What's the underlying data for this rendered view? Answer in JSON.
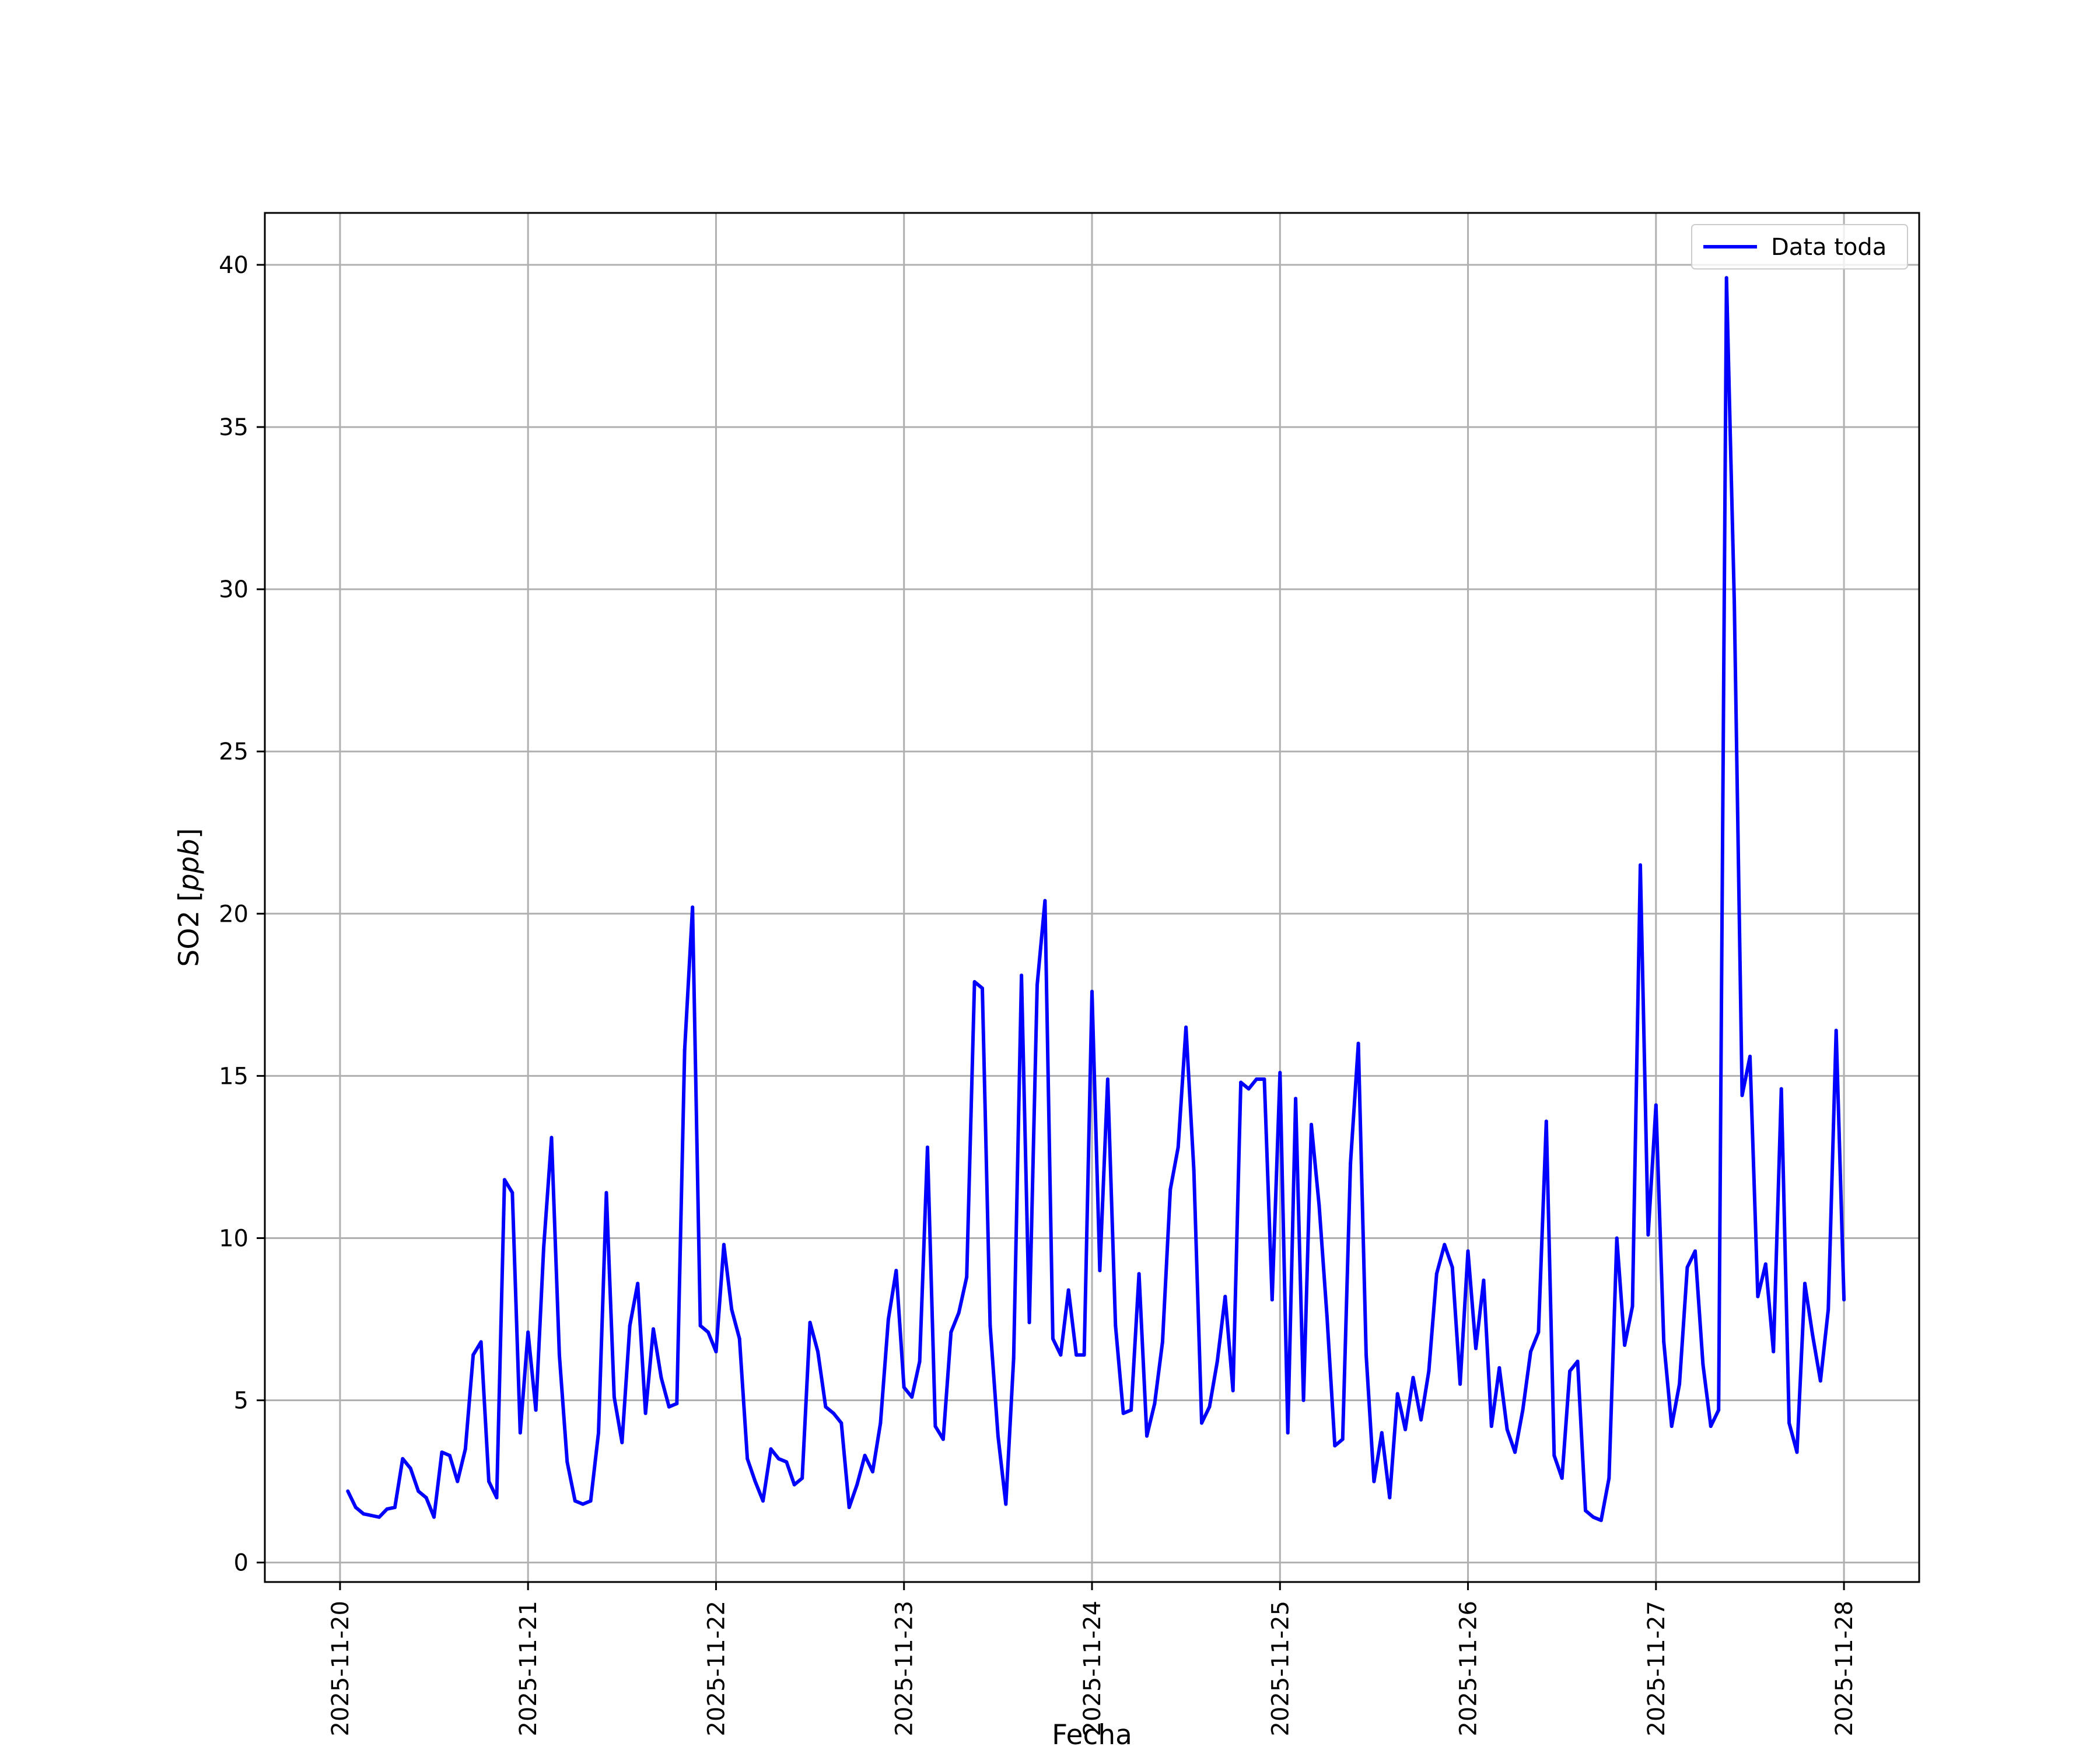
{
  "chart_data": {
    "type": "line",
    "xlabel": "Fecha",
    "ylabel": "SO2 [ppb]",
    "ylabel_parts": {
      "prefix": "SO2 [",
      "italic": "ppb",
      "suffix": "]"
    },
    "xlim": [
      "2025-11-19T14:24",
      "2025-11-28T09:36"
    ],
    "ylim": [
      -0.6,
      41.6
    ],
    "xticks": [
      "2025-11-20",
      "2025-11-21",
      "2025-11-22",
      "2025-11-23",
      "2025-11-24",
      "2025-11-25",
      "2025-11-26",
      "2025-11-27",
      "2025-11-28"
    ],
    "yticks": [
      "0",
      "5",
      "10",
      "15",
      "20",
      "25",
      "30",
      "35",
      "40"
    ],
    "grid": true,
    "legend": {
      "position": "top-right",
      "entries": [
        "Data toda"
      ]
    },
    "colors": {
      "line": "#0000ff",
      "grid": "#b0b0b0",
      "axes": "#000000"
    },
    "series": [
      {
        "name": "Data toda",
        "x_start": "2025-11-20T01:00",
        "x_step_hours": 1,
        "values": [
          2.2,
          1.7,
          1.5,
          1.45,
          1.4,
          1.65,
          1.7,
          3.2,
          2.9,
          2.2,
          2.0,
          1.4,
          3.4,
          3.3,
          2.5,
          3.5,
          6.4,
          6.8,
          2.5,
          2.0,
          11.8,
          11.4,
          4.0,
          7.1,
          4.7,
          9.7,
          13.1,
          6.4,
          3.1,
          1.9,
          1.8,
          1.9,
          4.0,
          11.4,
          5.1,
          3.7,
          7.3,
          8.6,
          4.6,
          7.2,
          5.7,
          4.8,
          4.9,
          15.8,
          20.2,
          7.3,
          7.1,
          6.5,
          9.8,
          7.8,
          6.9,
          3.2,
          2.5,
          1.9,
          3.5,
          3.2,
          3.1,
          2.4,
          2.6,
          7.4,
          6.5,
          4.8,
          4.6,
          4.3,
          1.7,
          2.4,
          3.3,
          2.8,
          4.3,
          7.5,
          9.0,
          5.4,
          5.1,
          6.2,
          12.8,
          4.2,
          3.8,
          7.1,
          7.7,
          8.8,
          17.9,
          17.7,
          7.3,
          3.9,
          1.8,
          6.3,
          18.1,
          7.4,
          17.8,
          20.4,
          6.9,
          6.4,
          8.4,
          6.4,
          6.4,
          17.6,
          9.0,
          14.9,
          7.3,
          4.6,
          4.7,
          8.9,
          3.9,
          4.9,
          6.8,
          11.5,
          12.8,
          16.5,
          12.1,
          4.3,
          4.8,
          6.2,
          8.2,
          5.3,
          14.8,
          14.6,
          14.9,
          14.9,
          8.1,
          15.1,
          4.0,
          14.3,
          5.0,
          13.5,
          11.0,
          7.6,
          3.6,
          3.8,
          12.3,
          16.0,
          6.4,
          2.5,
          4.0,
          2.0,
          5.2,
          4.1,
          5.7,
          4.4,
          5.9,
          8.9,
          9.8,
          9.1,
          5.5,
          9.6,
          6.6,
          8.7,
          4.2,
          6.0,
          4.1,
          3.4,
          4.7,
          6.5,
          7.1,
          13.6,
          3.3,
          2.6,
          5.9,
          6.2,
          1.6,
          1.4,
          1.3,
          2.6,
          10.0,
          6.7,
          7.9,
          21.5,
          10.1,
          14.1,
          6.8,
          4.2,
          5.5,
          9.1,
          9.6,
          6.1,
          4.2,
          4.7,
          39.6,
          29.6,
          14.4,
          15.6,
          8.2,
          9.2,
          6.5,
          14.6,
          4.3,
          3.4,
          8.6,
          7.0,
          5.6,
          7.8,
          16.4,
          8.1
        ]
      }
    ]
  }
}
